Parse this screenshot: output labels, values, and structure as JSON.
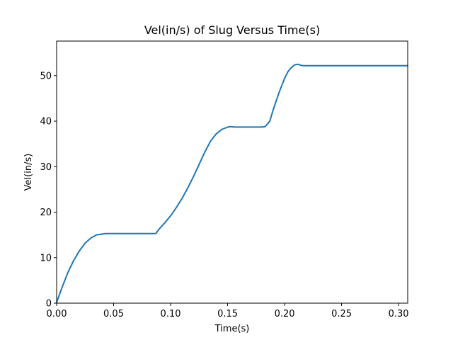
{
  "chart_data": {
    "type": "line",
    "title": "Vel(in/s) of Slug Versus Time(s)",
    "xlabel": "Time(s)",
    "ylabel": "Vel(in/s)",
    "xlim": [
      0.0,
      0.308
    ],
    "ylim": [
      0,
      57.6
    ],
    "xticks": [
      0.0,
      0.05,
      0.1,
      0.15,
      0.2,
      0.25,
      0.3
    ],
    "xtick_labels": [
      "0.00",
      "0.05",
      "0.10",
      "0.15",
      "0.20",
      "0.25",
      "0.30"
    ],
    "yticks": [
      0,
      10,
      20,
      30,
      40,
      50
    ],
    "ytick_labels": [
      "0",
      "10",
      "20",
      "30",
      "40",
      "50"
    ],
    "grid": false,
    "colors": {
      "series": "#1f77b4"
    },
    "series": [
      {
        "x": [
          0.0,
          0.005,
          0.01,
          0.015,
          0.02,
          0.025,
          0.03,
          0.035,
          0.04,
          0.043,
          0.046,
          0.05,
          0.06,
          0.07,
          0.08,
          0.087,
          0.09,
          0.095,
          0.1,
          0.105,
          0.11,
          0.115,
          0.12,
          0.125,
          0.13,
          0.135,
          0.14,
          0.145,
          0.15,
          0.153,
          0.156,
          0.16,
          0.17,
          0.18,
          0.183,
          0.187,
          0.19,
          0.195,
          0.2,
          0.203,
          0.206,
          0.209,
          0.212,
          0.214,
          0.216,
          0.218,
          0.22,
          0.25,
          0.28,
          0.308
        ],
        "y": [
          0.2,
          3.6,
          6.8,
          9.4,
          11.5,
          13.2,
          14.3,
          15.0,
          15.2,
          15.3,
          15.3,
          15.3,
          15.3,
          15.3,
          15.3,
          15.3,
          16.3,
          17.7,
          19.2,
          21.0,
          23.0,
          25.3,
          27.8,
          30.5,
          33.2,
          35.6,
          37.2,
          38.2,
          38.7,
          38.8,
          38.7,
          38.7,
          38.7,
          38.7,
          38.8,
          40.0,
          42.5,
          46.2,
          49.4,
          50.9,
          51.8,
          52.4,
          52.5,
          52.3,
          52.2,
          52.2,
          52.2,
          52.2,
          52.2,
          52.2
        ]
      }
    ]
  }
}
